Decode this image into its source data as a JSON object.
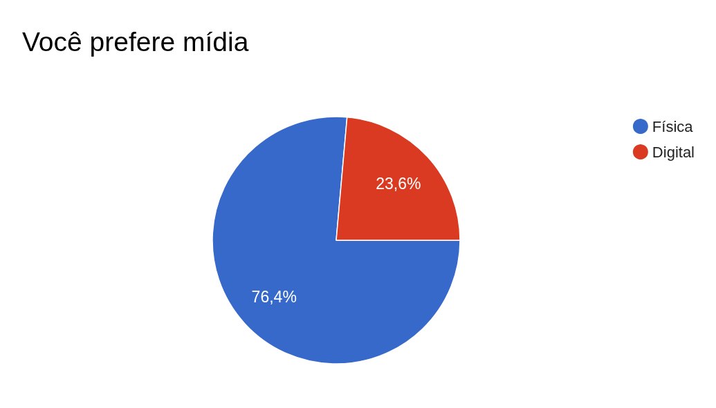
{
  "chart_data": {
    "type": "pie",
    "title": "Você prefere mídia",
    "categories": [
      "Física",
      "Digital"
    ],
    "values": [
      76.4,
      23.6
    ],
    "colors": [
      "#3669c9",
      "#da3a21"
    ],
    "value_labels": [
      "76,4%",
      "23,6%"
    ],
    "legend": "right"
  }
}
